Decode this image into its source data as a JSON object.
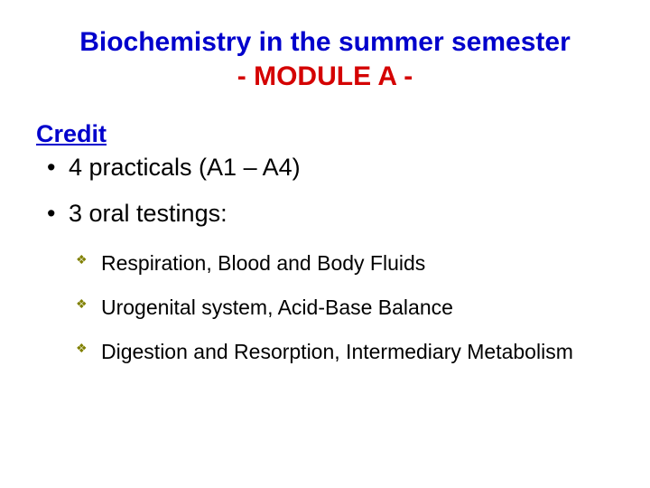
{
  "colors": {
    "background": "#ffffff",
    "title_line1": "#0000cc",
    "title_line2": "#d40202",
    "credit_heading": "#0000cc",
    "body_text": "#000000",
    "sub_bullet": "#808000"
  },
  "typography": {
    "title_fontsize": 30,
    "credit_fontsize": 27,
    "main_list_fontsize": 27,
    "sub_list_fontsize": 23,
    "font_family": "Comic Sans MS"
  },
  "title": {
    "line1": "Biochemistry in the summer semester",
    "line2": "- MODULE A -"
  },
  "credit_heading": "Credit",
  "main_items": [
    "4 practicals (A1 – A4)",
    "3 oral testings:"
  ],
  "sub_items": [
    "Respiration, Blood and Body Fluids",
    "Urogenital system, Acid-Base Balance",
    "Digestion and Resorption, Intermediary Metabolism"
  ]
}
